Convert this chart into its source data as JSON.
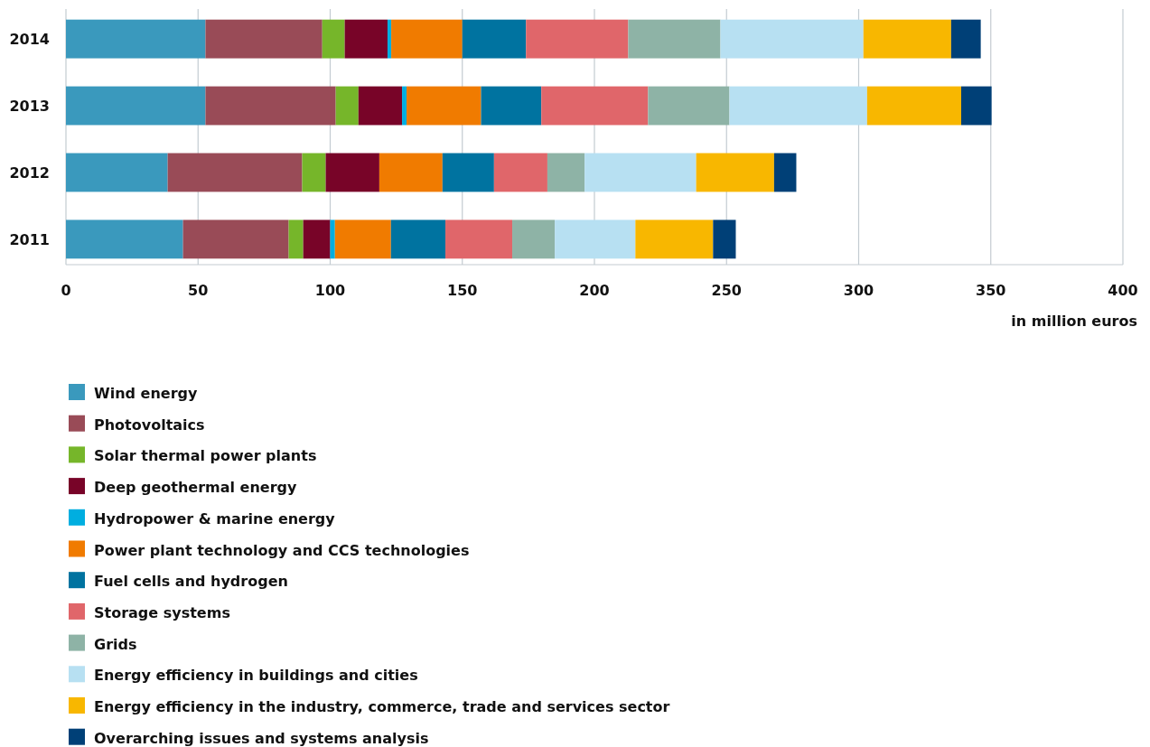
{
  "chart_data": {
    "type": "bar",
    "orientation": "horizontal",
    "stacked": true,
    "xlabel": "in million euros",
    "categories": [
      "2014",
      "2013",
      "2012",
      "2011"
    ],
    "xlim": [
      0,
      400
    ],
    "xticks": [
      0,
      50,
      100,
      150,
      200,
      250,
      300,
      350,
      400
    ],
    "grid": "x",
    "legend": "bottom",
    "series": [
      {
        "name": "Wind energy",
        "color": "#3a99bd",
        "values": [
          52.8,
          52.8,
          38.5,
          44.3
        ]
      },
      {
        "name": "Photovoltaics",
        "color": "#994b57",
        "values": [
          44.2,
          49.3,
          50.9,
          40.0
        ]
      },
      {
        "name": "Solar thermal power plants",
        "color": "#76b62a",
        "values": [
          8.5,
          8.6,
          8.9,
          5.5
        ]
      },
      {
        "name": "Deep geothermal energy",
        "color": "#780428",
        "values": [
          16.2,
          16.5,
          20.3,
          10.2
        ]
      },
      {
        "name": "Hydropower & marine energy",
        "color": "#00aee0",
        "values": [
          1.4,
          1.7,
          0,
          1.8
        ]
      },
      {
        "name": "Power plant technology and CCS technologies",
        "color": "#f07b00",
        "values": [
          26.9,
          28.2,
          23.9,
          21.2
        ]
      },
      {
        "name": "Fuel cells and hydrogen",
        "color": "#0073a0",
        "values": [
          24.1,
          22.8,
          19.5,
          20.6
        ]
      },
      {
        "name": "Storage systems",
        "color": "#e0666a",
        "values": [
          38.7,
          40.4,
          20.2,
          25.3
        ]
      },
      {
        "name": "Grids",
        "color": "#8eb3a6",
        "values": [
          34.9,
          30.8,
          14.1,
          16.1
        ]
      },
      {
        "name": "Energy efficiency in buildings and cities",
        "color": "#b7e0f2",
        "values": [
          54.1,
          52.1,
          42.2,
          30.5
        ]
      },
      {
        "name": "Energy efficiency in the industry, commerce, trade and services sector",
        "color": "#f8b700",
        "values": [
          33.2,
          35.6,
          29.5,
          29.4
        ]
      },
      {
        "name": "Overarching issues and systems analysis",
        "color": "#004077",
        "values": [
          11.2,
          11.5,
          8.4,
          8.6
        ]
      }
    ]
  }
}
